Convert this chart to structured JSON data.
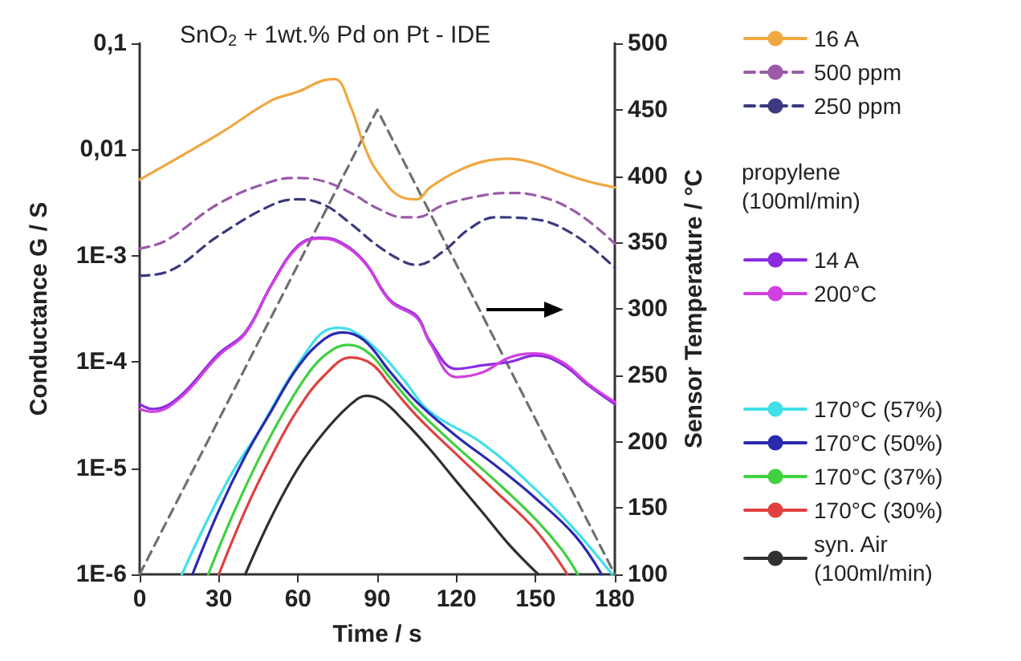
{
  "chart_data": {
    "type": "line",
    "title": "SnO$_{2}$ + 1wt.% Pd on Pt - IDE",
    "xlabel": "Time / s",
    "ylabel": "Conductance G / S",
    "y2label": "Sensor Temperature / °C",
    "log": "y",
    "grid": false,
    "legend": "right",
    "marker": "none",
    "line_style": "solid",
    "xlim": [
      0,
      180
    ],
    "xticks": [
      0,
      30,
      60,
      90,
      120,
      150,
      180
    ],
    "ylim": [
      1e-06,
      0.1
    ],
    "yticks": [
      {
        "value": 1e-06,
        "label": "1E-6"
      },
      {
        "value": 1e-05,
        "label": "1E-5"
      },
      {
        "value": 0.0001,
        "label": "1E-4"
      },
      {
        "value": 0.001,
        "label": "1E-3"
      },
      {
        "value": 0.01,
        "label": "0,01"
      },
      {
        "value": 0.1,
        "label": "0,1"
      }
    ],
    "y2lim": [
      100,
      500
    ],
    "y2ticks": [
      100,
      150,
      200,
      250,
      300,
      350,
      400,
      450,
      500
    ],
    "annotations": [
      "propylene (100ml/min)"
    ],
    "series": [
      {
        "name": "16 A",
        "color": "#f0a840",
        "x": [
          0,
          30,
          50,
          60,
          70,
          74,
          80,
          85,
          90,
          100,
          105,
          110,
          120,
          130,
          140,
          150,
          160,
          170,
          180
        ],
        "values": [
          0.0052,
          0.014,
          0.029,
          0.035,
          0.045,
          0.046,
          0.025,
          0.011,
          0.0062,
          0.0035,
          0.0034,
          0.0044,
          0.0062,
          0.0077,
          0.0082,
          0.0074,
          0.006,
          0.005,
          0.0044
        ]
      },
      {
        "name": "500 ppm",
        "color": "#9a5aa8",
        "line_style": "dashed",
        "x": [
          0,
          10,
          30,
          50,
          60,
          70,
          80,
          90,
          100,
          105,
          115,
          130,
          140,
          150,
          165,
          180
        ],
        "values": [
          0.00117,
          0.00139,
          0.0031,
          0.005,
          0.0054,
          0.005,
          0.0039,
          0.0028,
          0.0023,
          0.0023,
          0.003,
          0.0037,
          0.0039,
          0.0037,
          0.0026,
          0.0013
        ]
      },
      {
        "name": "250 ppm",
        "color": "#3a3a80",
        "line_style": "dashed",
        "x": [
          0,
          10,
          30,
          50,
          60,
          70,
          80,
          90,
          100,
          105,
          115,
          125,
          135,
          150,
          165,
          180
        ],
        "values": [
          0.00065,
          0.0007,
          0.00155,
          0.003,
          0.0034,
          0.003,
          0.002,
          0.00125,
          0.00088,
          0.00082,
          0.0011,
          0.0018,
          0.0023,
          0.0022,
          0.00155,
          0.00077
        ]
      },
      {
        "name": "14 A",
        "color": "#8a2be2",
        "x": [
          0,
          5,
          15,
          30,
          40,
          50,
          60,
          68,
          75,
          85,
          95,
          105,
          110,
          120,
          130,
          140,
          150,
          160,
          170,
          180
        ],
        "values": [
          4e-05,
          3.6e-05,
          4.7e-05,
          0.00012,
          0.00019,
          0.00054,
          0.00125,
          0.00148,
          0.00138,
          0.00089,
          0.00038,
          0.00027,
          0.000156,
          8.6e-05,
          9.3e-05,
          0.0001,
          0.000115,
          9.5e-05,
          6e-05,
          4e-05
        ]
      },
      {
        "name": "200°C",
        "color": "#d040e0",
        "x": [
          0,
          5,
          15,
          30,
          40,
          50,
          60,
          68,
          75,
          85,
          95,
          105,
          110,
          120,
          130,
          140,
          150,
          160,
          170,
          180
        ],
        "values": [
          3.6e-05,
          3.4e-05,
          4.5e-05,
          0.000115,
          0.000185,
          0.00053,
          0.00122,
          0.00145,
          0.00135,
          0.00087,
          0.00037,
          0.00026,
          0.00015,
          7.2e-05,
          8e-05,
          0.00011,
          0.00012,
          0.0001,
          6.2e-05,
          4.2e-05
        ]
      },
      {
        "name": "170°C (57%)",
        "color": "#40e0e8",
        "x": [
          16,
          25,
          35,
          45,
          55,
          65,
          70,
          75,
          80,
          90,
          100,
          110,
          130,
          150,
          165,
          179
        ],
        "values": [
          1e-06,
          3e-06,
          9e-06,
          2.2e-05,
          6e-05,
          0.000145,
          0.000195,
          0.00021,
          0.0002,
          0.00013,
          6.8e-05,
          3.4e-05,
          1.7e-05,
          6.3e-06,
          2.6e-06,
          1e-06
        ]
      },
      {
        "name": "170°C (50%)",
        "color": "#2a2ab0",
        "x": [
          20,
          30,
          40,
          50,
          60,
          70,
          77,
          85,
          95,
          105,
          120,
          135,
          150,
          165,
          175
        ],
        "values": [
          1e-06,
          4e-06,
          1.3e-05,
          3.5e-05,
          9e-05,
          0.000165,
          0.00019,
          0.00016,
          8e-05,
          4.2e-05,
          2e-05,
          1.05e-05,
          5.2e-06,
          2.3e-06,
          1e-06
        ]
      },
      {
        "name": "170°C (37%)",
        "color": "#40d040",
        "x": [
          26,
          35,
          45,
          55,
          65,
          72,
          79,
          87,
          95,
          105,
          120,
          135,
          150,
          160,
          166
        ],
        "values": [
          1e-06,
          3.5e-06,
          1.2e-05,
          3.5e-05,
          8.5e-05,
          0.000125,
          0.000145,
          0.00012,
          7e-05,
          3.6e-05,
          1.6e-05,
          7.5e-06,
          3.3e-06,
          1.7e-06,
          1e-06
        ]
      },
      {
        "name": "170°C (30%)",
        "color": "#e04040",
        "x": [
          30,
          40,
          50,
          60,
          70,
          80,
          88,
          95,
          105,
          120,
          135,
          150,
          162
        ],
        "values": [
          1e-06,
          4e-06,
          1.3e-05,
          3.6e-05,
          7.5e-05,
          0.00011,
          9.5e-05,
          6e-05,
          3.1e-05,
          1.35e-05,
          6e-06,
          2.6e-06,
          1e-06
        ]
      },
      {
        "name": "syn. Air (100ml/min)",
        "color": "#303030",
        "x": [
          40,
          50,
          60,
          70,
          80,
          86,
          92,
          100,
          110,
          120,
          130,
          140,
          151
        ],
        "values": [
          1e-06,
          3.5e-06,
          1e-05,
          2.2e-05,
          4e-05,
          4.8e-05,
          4.3e-05,
          2.8e-05,
          1.5e-05,
          7.5e-06,
          3.8e-06,
          1.9e-06,
          1e-06
        ]
      },
      {
        "type": "line",
        "axis": "y2",
        "color": "#707070",
        "line_style": "dashed",
        "x": [
          0,
          90,
          180
        ],
        "values": [
          100,
          450,
          100
        ]
      }
    ]
  }
}
